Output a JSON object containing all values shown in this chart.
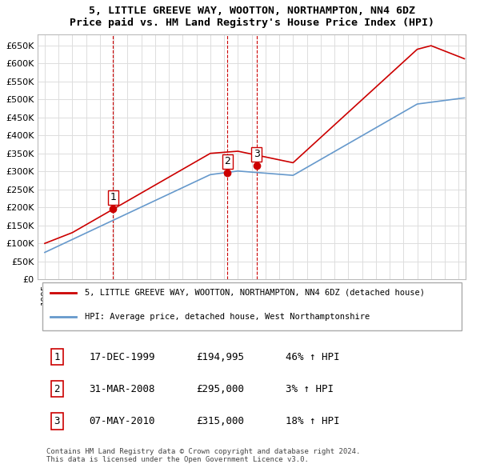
{
  "title": "5, LITTLE GREEVE WAY, WOOTTON, NORTHAMPTON, NN4 6DZ",
  "subtitle": "Price paid vs. HM Land Registry's House Price Index (HPI)",
  "ylim": [
    0,
    680000
  ],
  "yticks": [
    0,
    50000,
    100000,
    150000,
    200000,
    250000,
    300000,
    350000,
    400000,
    450000,
    500000,
    550000,
    600000,
    650000
  ],
  "ytick_labels": [
    "£0",
    "£50K",
    "£100K",
    "£150K",
    "£200K",
    "£250K",
    "£300K",
    "£350K",
    "£400K",
    "£450K",
    "£500K",
    "£550K",
    "£600K",
    "£650K"
  ],
  "sale_color": "#cc0000",
  "hpi_color": "#6699cc",
  "sale_dates": [
    1999.96,
    2008.25,
    2010.35
  ],
  "sale_prices": [
    194995,
    295000,
    315000
  ],
  "sale_labels": [
    "1",
    "2",
    "3"
  ],
  "vline_color": "#cc0000",
  "legend_sale_label": "5, LITTLE GREEVE WAY, WOOTTON, NORTHAMPTON, NN4 6DZ (detached house)",
  "legend_hpi_label": "HPI: Average price, detached house, West Northamptonshire",
  "table_rows": [
    [
      "1",
      "17-DEC-1999",
      "£194,995",
      "46% ↑ HPI"
    ],
    [
      "2",
      "31-MAR-2008",
      "£295,000",
      "3% ↑ HPI"
    ],
    [
      "3",
      "07-MAY-2010",
      "£315,000",
      "18% ↑ HPI"
    ]
  ],
  "footnote": "Contains HM Land Registry data © Crown copyright and database right 2024.\nThis data is licensed under the Open Government Licence v3.0.",
  "background_color": "#ffffff",
  "grid_color": "#dddddd"
}
